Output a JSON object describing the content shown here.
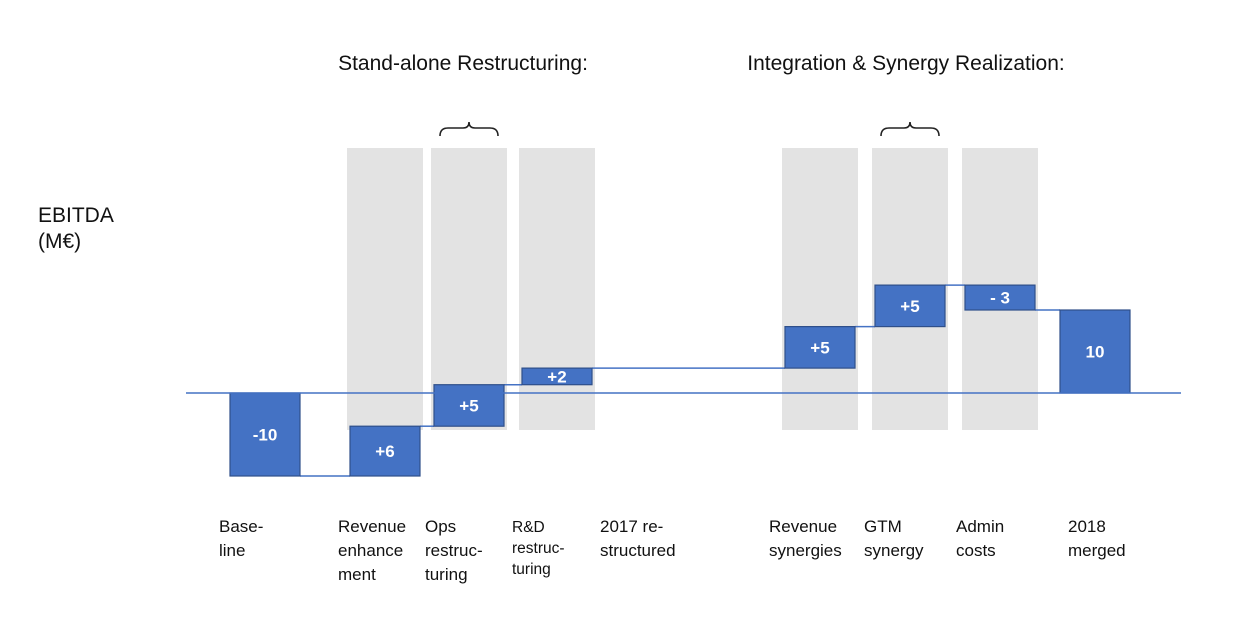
{
  "chart_data": {
    "type": "bar",
    "subtype": "waterfall",
    "ylabel_lines": [
      "EBITDA",
      "(M€)"
    ],
    "group_headers": [
      {
        "label": "Stand-alone Restructuring:"
      },
      {
        "label": "Integration & Synergy Realization:"
      }
    ],
    "categories": [
      {
        "lines": [
          "Base-",
          "line"
        ]
      },
      {
        "lines": [
          "Revenue",
          "enhance",
          "ment"
        ]
      },
      {
        "lines": [
          "Ops",
          "restruc-",
          "turing"
        ]
      },
      {
        "lines": [
          "R&D",
          "restruc-",
          "turing"
        ]
      },
      {
        "lines": [
          "2017 re-",
          "structured"
        ]
      },
      {
        "lines": [
          "Revenue",
          "synergies"
        ]
      },
      {
        "lines": [
          "GTM",
          "synergy"
        ]
      },
      {
        "lines": [
          "Admin",
          "costs"
        ]
      },
      {
        "lines": [
          "2018",
          "merged"
        ]
      }
    ],
    "bars": [
      {
        "category_index": 0,
        "kind": "total",
        "value": -10,
        "label": "-10"
      },
      {
        "category_index": 1,
        "kind": "delta",
        "value": 6,
        "label": "+6"
      },
      {
        "category_index": 2,
        "kind": "delta",
        "value": 5,
        "label": "+5"
      },
      {
        "category_index": 3,
        "kind": "delta",
        "value": 2,
        "label": "+2"
      },
      {
        "category_index": 5,
        "kind": "delta",
        "value": 5,
        "label": "+5"
      },
      {
        "category_index": 6,
        "kind": "delta",
        "value": 5,
        "label": "+5"
      },
      {
        "category_index": 7,
        "kind": "delta",
        "value": -3,
        "label": "- 3"
      },
      {
        "category_index": 8,
        "kind": "total",
        "value": 10,
        "label": "10"
      }
    ],
    "shaded_categories": [
      1,
      2,
      3,
      5,
      6,
      7
    ],
    "brace_categories": [
      2,
      6
    ],
    "ylim": [
      -10,
      10
    ],
    "grid": false,
    "colors": {
      "bar": "#4472c4",
      "shade": "#e3e3e3",
      "baseline": "#4472c4"
    }
  }
}
